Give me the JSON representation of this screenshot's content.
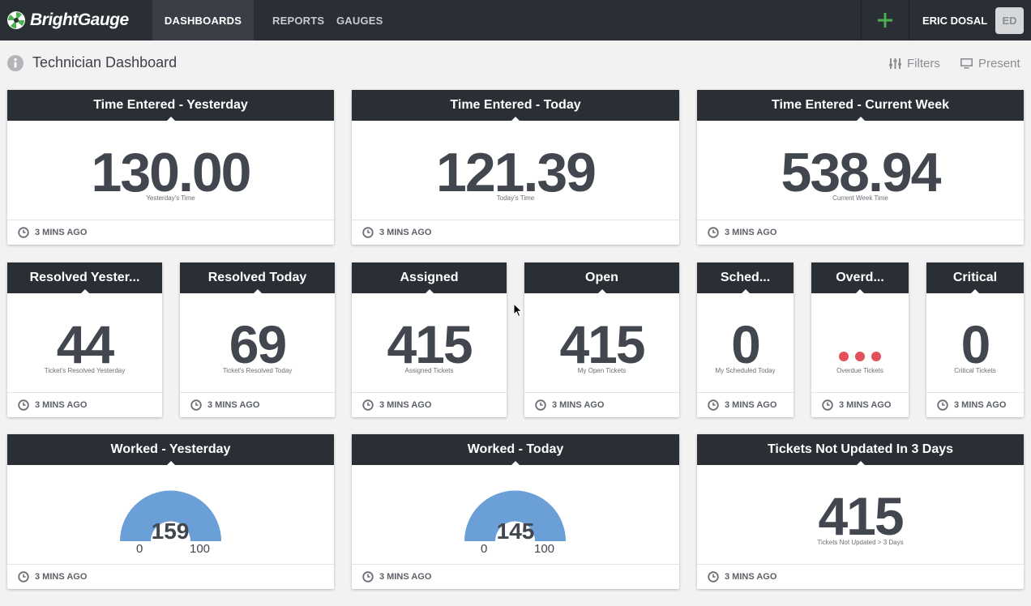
{
  "brand": {
    "name": "BrightGauge"
  },
  "nav": {
    "tabs": [
      {
        "label": "DASHBOARDS",
        "active": true
      },
      {
        "label": "REPORTS",
        "active": false
      },
      {
        "label": "GAUGES",
        "active": false
      }
    ],
    "user": {
      "name": "ERIC DOSAL",
      "initials": "ED"
    }
  },
  "page": {
    "title": "Technician Dashboard",
    "filters_label": "Filters",
    "present_label": "Present"
  },
  "colors": {
    "nav_bg": "#2a2e35",
    "accent_green": "#4caf50",
    "gauge_blue": "#6a9fd8",
    "alert_red": "#e2505a"
  },
  "cards": [
    {
      "title": "Time Entered - Yesterday",
      "value": "130.00",
      "label": "Yesterday's Time",
      "updated": "3 MINS AGO"
    },
    {
      "title": "Time Entered - Today",
      "value": "121.39",
      "label": "Today's Time",
      "updated": "3 MINS AGO"
    },
    {
      "title": "Time Entered - Current Week",
      "value": "538.94",
      "label": "Current Week Time",
      "updated": "3 MINS AGO"
    },
    {
      "title": "Resolved Yester...",
      "value": "44",
      "label": "Ticket's Resolved Yesterday",
      "updated": "3 MINS AGO"
    },
    {
      "title": "Resolved Today",
      "value": "69",
      "label": "Ticket's Resolved Today",
      "updated": "3 MINS AGO"
    },
    {
      "title": "Assigned",
      "value": "415",
      "label": "Assigned Tickets",
      "updated": "3 MINS AGO"
    },
    {
      "title": "Open",
      "value": "415",
      "label": "My Open Tickets",
      "updated": "3 MINS AGO"
    },
    {
      "title": "Sched...",
      "value": "0",
      "label": "My Scheduled Today",
      "updated": "3 MINS AGO"
    },
    {
      "title": "Overd...",
      "value": "",
      "label": "Overdue Tickets",
      "updated": "3 MINS AGO"
    },
    {
      "title": "Critical",
      "value": "0",
      "label": "Critical Tickets",
      "updated": "3 MINS AGO"
    },
    {
      "title": "Worked - Yesterday",
      "value": "159",
      "min": "0",
      "max": "100",
      "updated": "3 MINS AGO"
    },
    {
      "title": "Worked - Today",
      "value": "145",
      "min": "0",
      "max": "100",
      "updated": "3 MINS AGO"
    },
    {
      "title": "Tickets Not Updated In 3 Days",
      "value": "415",
      "label": "Tickets Not Updated > 3 Days",
      "updated": "3 MINS AGO"
    }
  ]
}
